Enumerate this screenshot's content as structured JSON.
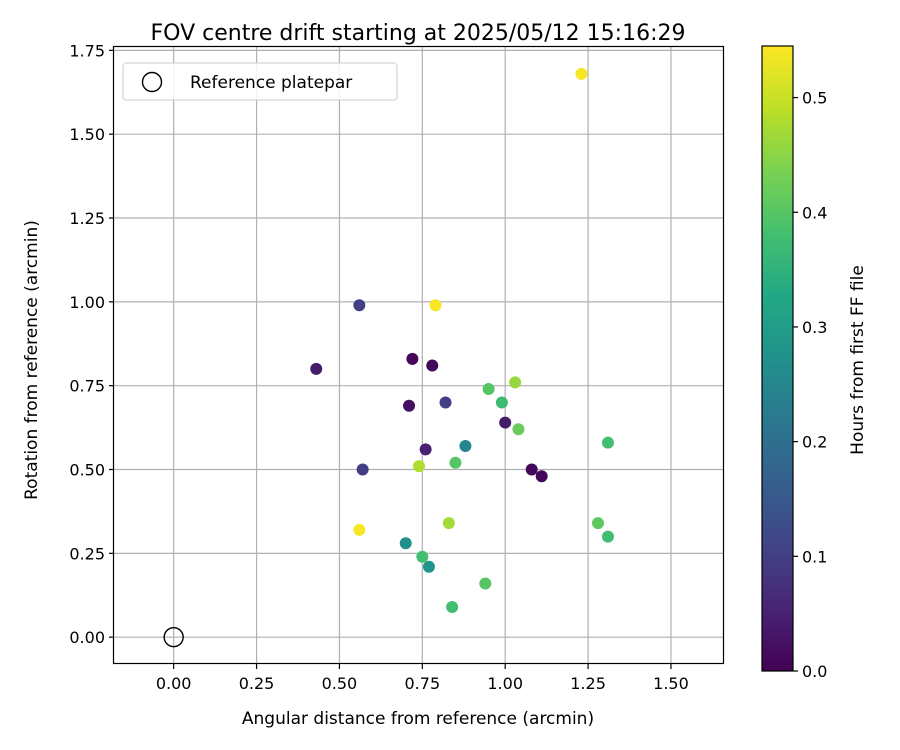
{
  "chart_data": {
    "type": "scatter",
    "title": "FOV centre drift starting at 2025/05/12 15:16:29",
    "xlabel": "Angular distance from reference (arcmin)",
    "ylabel": "Rotation from reference (arcmin)",
    "xlim": [
      -0.18,
      1.66
    ],
    "ylim": [
      -0.08,
      1.76
    ],
    "xticks": [
      "0.00",
      "0.25",
      "0.50",
      "0.75",
      "1.00",
      "1.25",
      "1.50"
    ],
    "yticks": [
      "0.00",
      "0.25",
      "0.50",
      "0.75",
      "1.00",
      "1.25",
      "1.50",
      "1.75"
    ],
    "grid": true,
    "legend": {
      "position": "top-left",
      "label": "Reference platepar"
    },
    "reference_point": {
      "x": 0.0,
      "y": 0.0
    },
    "colorbar": {
      "label": "Hours from first FF file",
      "range": [
        0.0,
        0.545
      ],
      "ticks": [
        "0.0",
        "0.1",
        "0.2",
        "0.3",
        "0.4",
        "0.5"
      ],
      "colormap": "viridis"
    },
    "points": [
      {
        "x": 0.43,
        "y": 0.8,
        "hours": 0.04
      },
      {
        "x": 0.56,
        "y": 0.99,
        "hours": 0.1
      },
      {
        "x": 0.72,
        "y": 0.83,
        "hours": 0.01
      },
      {
        "x": 0.78,
        "y": 0.81,
        "hours": 0.01
      },
      {
        "x": 0.71,
        "y": 0.69,
        "hours": 0.02
      },
      {
        "x": 0.82,
        "y": 0.7,
        "hours": 0.1
      },
      {
        "x": 0.76,
        "y": 0.56,
        "hours": 0.05
      },
      {
        "x": 0.57,
        "y": 0.5,
        "hours": 0.1
      },
      {
        "x": 1.0,
        "y": 0.64,
        "hours": 0.04
      },
      {
        "x": 1.08,
        "y": 0.5,
        "hours": 0.01
      },
      {
        "x": 1.11,
        "y": 0.48,
        "hours": 0.01
      },
      {
        "x": 0.88,
        "y": 0.57,
        "hours": 0.25
      },
      {
        "x": 0.7,
        "y": 0.28,
        "hours": 0.27
      },
      {
        "x": 0.77,
        "y": 0.21,
        "hours": 0.28
      },
      {
        "x": 0.95,
        "y": 0.74,
        "hours": 0.4
      },
      {
        "x": 0.99,
        "y": 0.7,
        "hours": 0.37
      },
      {
        "x": 1.04,
        "y": 0.62,
        "hours": 0.42
      },
      {
        "x": 0.85,
        "y": 0.52,
        "hours": 0.4
      },
      {
        "x": 0.75,
        "y": 0.24,
        "hours": 0.38
      },
      {
        "x": 0.84,
        "y": 0.09,
        "hours": 0.38
      },
      {
        "x": 0.94,
        "y": 0.16,
        "hours": 0.4
      },
      {
        "x": 1.31,
        "y": 0.58,
        "hours": 0.38
      },
      {
        "x": 1.28,
        "y": 0.34,
        "hours": 0.41
      },
      {
        "x": 1.31,
        "y": 0.3,
        "hours": 0.38
      },
      {
        "x": 1.03,
        "y": 0.76,
        "hours": 0.46
      },
      {
        "x": 0.74,
        "y": 0.51,
        "hours": 0.48
      },
      {
        "x": 0.83,
        "y": 0.34,
        "hours": 0.47
      },
      {
        "x": 0.56,
        "y": 0.32,
        "hours": 0.54
      },
      {
        "x": 0.79,
        "y": 0.99,
        "hours": 0.54
      },
      {
        "x": 1.23,
        "y": 1.68,
        "hours": 0.54
      }
    ]
  }
}
